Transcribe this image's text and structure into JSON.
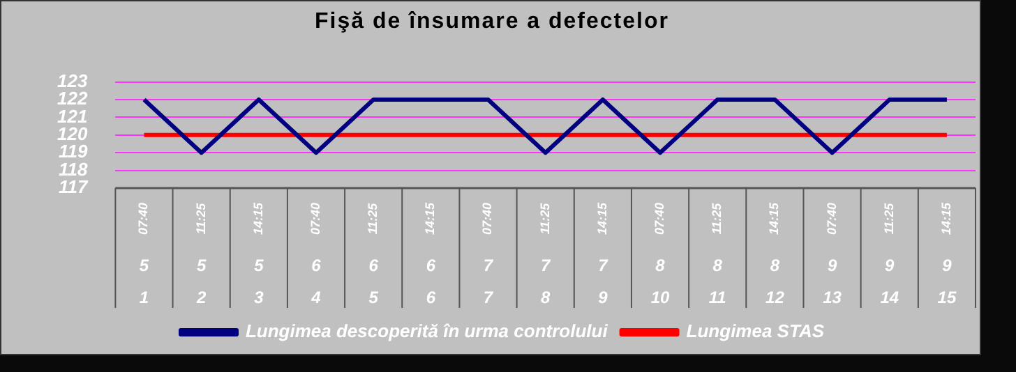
{
  "chart_data": {
    "type": "line",
    "title": "Fişă de însumare a defectelor",
    "categories": [
      "07:40\n5\n1",
      "11:25\n5\n2",
      "14:15\n5\n3",
      "07:40\n6\n4",
      "11:25\n6\n5",
      "14:15\n6\n6",
      "07:40\n7\n7",
      "11:25\n7\n8",
      "14:15\n7\n9",
      "07:40\n8\n10",
      "11:25\n8\n11",
      "14:15\n8\n12",
      "07:40\n9\n13",
      "11:25\n9\n14",
      "14:15\n9\n15"
    ],
    "series": [
      {
        "name": "Lungimea descoperită în urma controlului",
        "color": "#000080",
        "values": [
          122,
          119,
          122,
          119,
          122,
          122,
          122,
          119,
          122,
          119,
          122,
          122,
          119,
          122,
          122
        ]
      },
      {
        "name": "Lungimea STAS",
        "color": "#ff0000",
        "values": [
          120,
          120,
          120,
          120,
          120,
          120,
          120,
          120,
          120,
          120,
          120,
          120,
          120,
          120,
          120
        ]
      }
    ],
    "ylim": [
      117,
      123
    ],
    "yticks": [
      117,
      118,
      119,
      120,
      121,
      122,
      123
    ],
    "grid": "y",
    "legend": "bottom",
    "marker": "none",
    "line_style": "solid"
  }
}
